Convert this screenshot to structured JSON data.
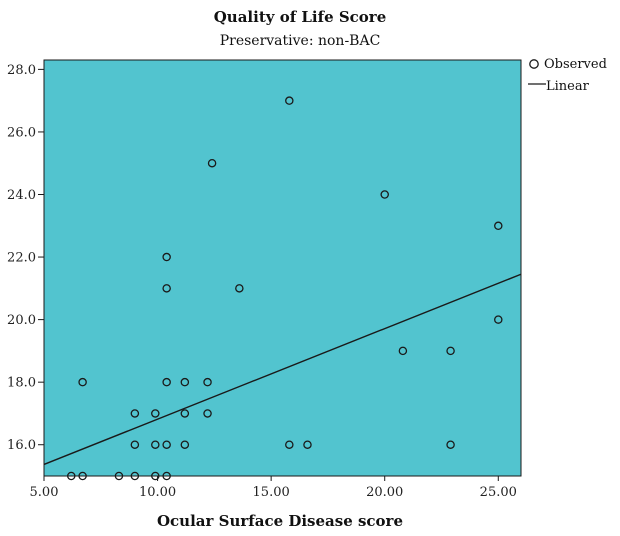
{
  "chart_data": {
    "type": "scatter",
    "title": "Quality of Life Score",
    "subtitle": "Preservative: non-BAC",
    "xlabel": "Ocular Surface Disease score",
    "ylabel": "",
    "xlim": [
      5.0,
      26.0
    ],
    "ylim": [
      15.0,
      28.3
    ],
    "xticks": [
      5,
      10,
      15,
      20,
      25
    ],
    "xtick_labels": [
      "5.00",
      "10.00",
      "15.00",
      "20.00",
      "25.00"
    ],
    "yticks": [
      16,
      18,
      20,
      22,
      24,
      26,
      28
    ],
    "ytick_labels": [
      "16.0",
      "18.0",
      "20.0",
      "22.0",
      "24.0",
      "26.0",
      "28.0"
    ],
    "background_color": "#52C4CF",
    "marker_color": "#1a1a1a",
    "line_color": "#1a1a1a",
    "legend": {
      "position": "top-right",
      "entries": [
        {
          "label": "Observed",
          "kind": "circle"
        },
        {
          "label": "Linear",
          "kind": "line"
        }
      ]
    },
    "series": [
      {
        "name": "Observed",
        "points": [
          [
            6.2,
            15.0
          ],
          [
            6.7,
            15.0
          ],
          [
            8.3,
            15.0
          ],
          [
            9.0,
            15.0
          ],
          [
            9.9,
            15.0
          ],
          [
            10.4,
            15.0
          ],
          [
            6.7,
            18.0
          ],
          [
            9.0,
            16.0
          ],
          [
            9.0,
            17.0
          ],
          [
            9.9,
            16.0
          ],
          [
            9.9,
            17.0
          ],
          [
            10.4,
            16.0
          ],
          [
            10.4,
            18.0
          ],
          [
            10.4,
            21.0
          ],
          [
            10.4,
            22.0
          ],
          [
            11.2,
            16.0
          ],
          [
            11.2,
            17.0
          ],
          [
            11.2,
            18.0
          ],
          [
            12.2,
            17.0
          ],
          [
            12.2,
            18.0
          ],
          [
            12.4,
            25.0
          ],
          [
            13.6,
            21.0
          ],
          [
            15.8,
            16.0
          ],
          [
            15.8,
            27.0
          ],
          [
            16.6,
            16.0
          ],
          [
            20.0,
            24.0
          ],
          [
            20.8,
            19.0
          ],
          [
            22.9,
            16.0
          ],
          [
            22.9,
            19.0
          ],
          [
            25.0,
            20.0
          ],
          [
            25.0,
            23.0
          ]
        ]
      },
      {
        "name": "Linear",
        "line": [
          [
            5.0,
            15.37
          ],
          [
            26.0,
            21.45
          ]
        ]
      }
    ]
  }
}
